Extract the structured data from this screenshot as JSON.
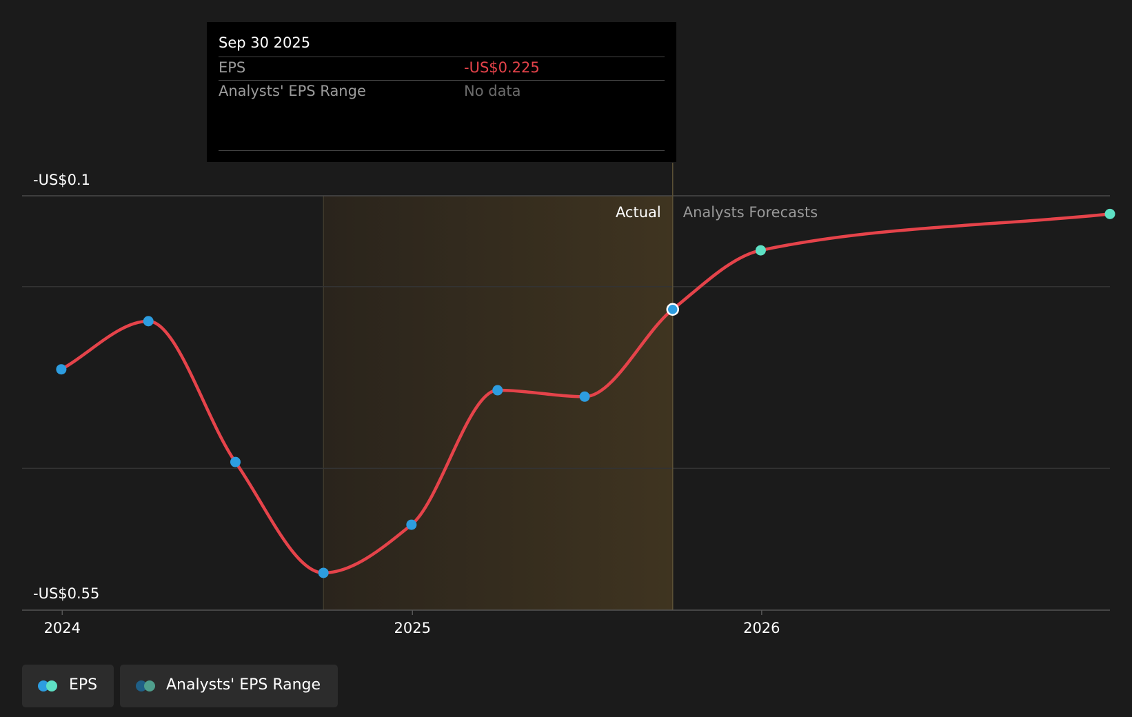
{
  "tooltip": {
    "date": "Sep 30 2025",
    "eps_label": "EPS",
    "eps_value": "-US$0.225",
    "range_label": "Analysts' EPS Range",
    "range_value": "No data"
  },
  "legend": {
    "eps_label": "EPS",
    "range_label": "Analysts' EPS Range"
  },
  "colors": {
    "background": "#1b1b1b",
    "line": "#e5434a",
    "actual_point": "#2d9de0",
    "forecast_point": "#5ee0c4",
    "actual_band": "#3f3420",
    "range_dot_a": "#1f5f86",
    "range_dot_b": "#4f9e8c"
  },
  "chart_data": {
    "type": "line",
    "title": "",
    "xlabel": "",
    "ylabel": "",
    "y_axis_labels": [
      "-US$0.1",
      "-US$0.55"
    ],
    "x_tick_labels": [
      "2024",
      "2025",
      "2026"
    ],
    "x_ticks": [
      "2024-01-01",
      "2025-01-01",
      "2026-01-01"
    ],
    "xlim": [
      "2023-11-20",
      "2026-12-31"
    ],
    "ylim": [
      -0.556,
      -0.1
    ],
    "gridlines": [
      -0.1,
      -0.2,
      -0.4
    ],
    "grid": true,
    "section_labels": {
      "actual": "Actual",
      "forecast": "Analysts Forecasts"
    },
    "actual_highlight_range": [
      "2024-09-30",
      "2025-09-30"
    ],
    "divider_date": "2025-09-30",
    "highlighted_point": "2025-09-30",
    "legend_position": "bottom-left",
    "series": [
      {
        "name": "EPS",
        "points": [
          {
            "x": "2023-12-31",
            "y": -0.291,
            "kind": "actual"
          },
          {
            "x": "2024-03-31",
            "y": -0.238,
            "kind": "actual"
          },
          {
            "x": "2024-06-30",
            "y": -0.393,
            "kind": "actual"
          },
          {
            "x": "2024-09-30",
            "y": -0.515,
            "kind": "actual"
          },
          {
            "x": "2024-12-31",
            "y": -0.462,
            "kind": "actual"
          },
          {
            "x": "2025-03-31",
            "y": -0.314,
            "kind": "actual"
          },
          {
            "x": "2025-06-30",
            "y": -0.321,
            "kind": "actual"
          },
          {
            "x": "2025-09-30",
            "y": -0.225,
            "kind": "actual"
          },
          {
            "x": "2025-12-31",
            "y": -0.16,
            "kind": "forecast"
          },
          {
            "x": "2026-12-31",
            "y": -0.12,
            "kind": "forecast"
          }
        ]
      }
    ]
  }
}
